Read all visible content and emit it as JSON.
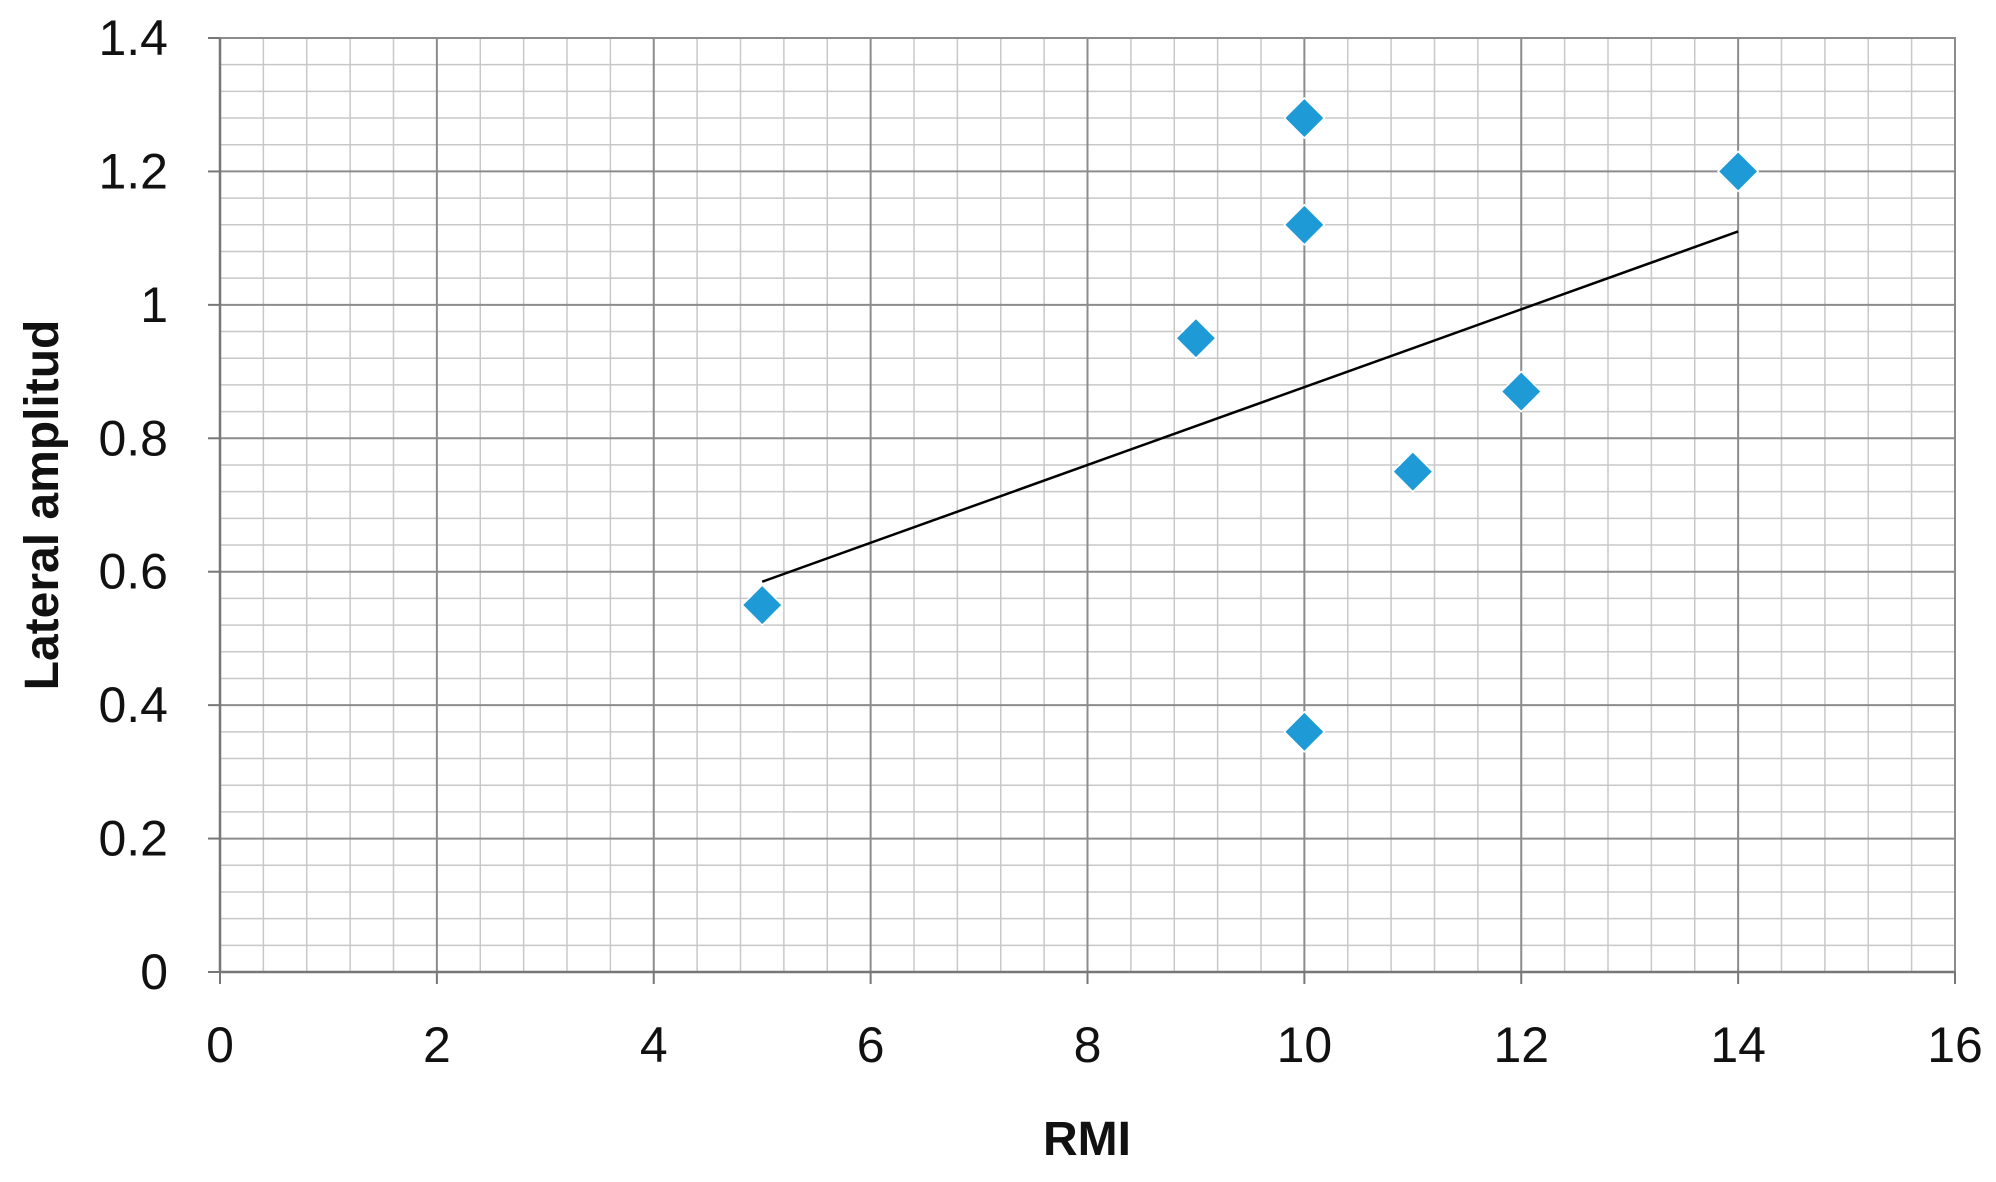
{
  "chart_data": {
    "type": "scatter",
    "title": "",
    "xlabel": "RMI",
    "ylabel": "Lateral amplitud",
    "xlim": [
      0,
      16
    ],
    "ylim": [
      0,
      1.4
    ],
    "x_ticks": [
      "0",
      "2",
      "4",
      "6",
      "8",
      "10",
      "12",
      "14",
      "16"
    ],
    "y_ticks": [
      "0",
      "0.2",
      "0.4",
      "0.6",
      "0.8",
      "1",
      "1.2",
      "1.4"
    ],
    "grid": true,
    "legend": "none",
    "series": [
      {
        "marker": "diamond",
        "color": "#1E9BD7",
        "points": [
          {
            "x": 5,
            "y": 0.55
          },
          {
            "x": 9,
            "y": 0.95
          },
          {
            "x": 10,
            "y": 1.28
          },
          {
            "x": 10,
            "y": 1.12
          },
          {
            "x": 10,
            "y": 0.36
          },
          {
            "x": 11,
            "y": 0.75
          },
          {
            "x": 12,
            "y": 0.87
          },
          {
            "x": 14,
            "y": 1.2
          }
        ]
      }
    ],
    "trendline": {
      "type": "linear",
      "color": "#000000",
      "x": [
        5,
        14
      ],
      "y": [
        0.585,
        1.11
      ]
    }
  }
}
